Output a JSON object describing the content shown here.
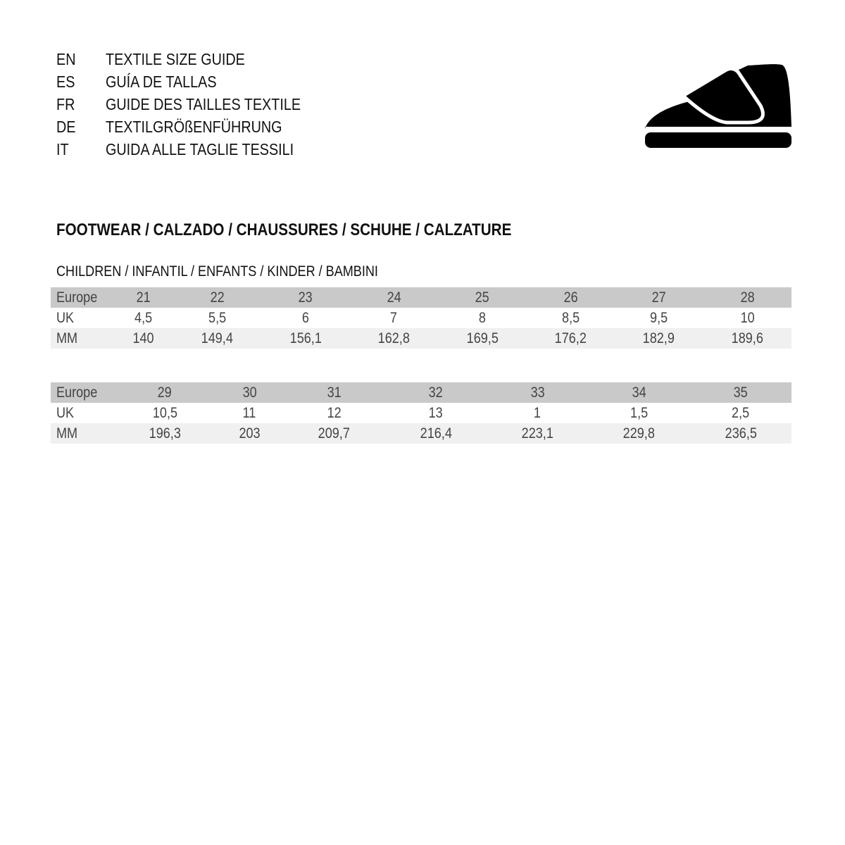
{
  "titles": [
    {
      "code": "EN",
      "text": "TEXTILE SIZE GUIDE"
    },
    {
      "code": "ES",
      "text": "GUÍA DE TALLAS"
    },
    {
      "code": "FR",
      "text": "GUIDE DES TAILLES TEXTILE"
    },
    {
      "code": "DE",
      "text": "TEXTILGRÖßENFÜHRUNG"
    },
    {
      "code": "IT",
      "text": "GUIDA ALLE TAGLIE TESSILI"
    }
  ],
  "icon": "shoe-icon",
  "heading": "FOOTWEAR / CALZADO / CHAUSSURES / SCHUHE / CALZATURE",
  "subheading": "CHILDREN / INFANTIL / ENFANTS / KINDER / BAMBINI",
  "tables": [
    {
      "rows": [
        {
          "label": "Europe",
          "values": [
            "21",
            "22",
            "23",
            "24",
            "25",
            "26",
            "27",
            "28"
          ]
        },
        {
          "label": "UK",
          "values": [
            "4,5",
            "5,5",
            "6",
            "7",
            "8",
            "8,5",
            "9,5",
            "10"
          ]
        },
        {
          "label": "MM",
          "values": [
            "140",
            "149,4",
            "156,1",
            "162,8",
            "169,5",
            "176,2",
            "182,9",
            "189,6"
          ]
        }
      ]
    },
    {
      "rows": [
        {
          "label": "Europe",
          "values": [
            "29",
            "30",
            "31",
            "32",
            "33",
            "34",
            "35",
            ""
          ]
        },
        {
          "label": "UK",
          "values": [
            "10,5",
            "11",
            "12",
            "13",
            "1",
            "1,5",
            "2,5",
            ""
          ]
        },
        {
          "label": "MM",
          "values": [
            "196,3",
            "203",
            "209,7",
            "216,4",
            "223,1",
            "229,8",
            "236,5",
            ""
          ]
        }
      ]
    }
  ],
  "colors": {
    "header_row": "#c9c9c9",
    "alt_row": "#f0f0f0"
  }
}
